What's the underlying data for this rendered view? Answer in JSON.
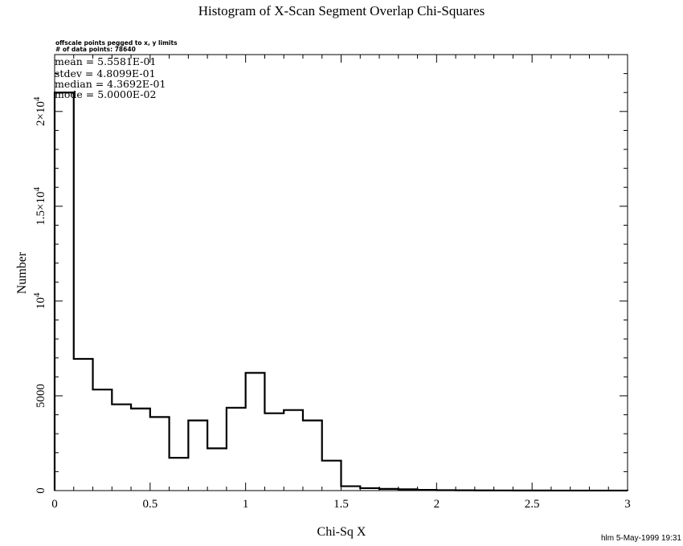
{
  "chart_data": {
    "type": "bar",
    "title": "Histogram of X-Scan Segment Overlap Chi-Squares",
    "xlabel": "Chi-Sq X",
    "ylabel": "Number",
    "xlim": [
      0,
      3
    ],
    "ylim": [
      0,
      23000
    ],
    "x_ticks": [
      "0",
      "0.5",
      "1",
      "1.5",
      "2",
      "2.5",
      "3"
    ],
    "y_ticks": [
      {
        "base": "0",
        "exp": ""
      },
      {
        "base": "5000",
        "exp": ""
      },
      {
        "base": "10",
        "exp": "4"
      },
      {
        "base": "1.5×10",
        "exp": "4"
      },
      {
        "base": "2×10",
        "exp": "4"
      }
    ],
    "bin_width": 0.1,
    "bins": [
      {
        "x0": 0.0,
        "value": 21000
      },
      {
        "x0": 0.1,
        "value": 6950
      },
      {
        "x0": 0.2,
        "value": 5330
      },
      {
        "x0": 0.3,
        "value": 4550
      },
      {
        "x0": 0.4,
        "value": 4330
      },
      {
        "x0": 0.5,
        "value": 3880
      },
      {
        "x0": 0.6,
        "value": 1730
      },
      {
        "x0": 0.7,
        "value": 3700
      },
      {
        "x0": 0.8,
        "value": 2230
      },
      {
        "x0": 0.9,
        "value": 4370
      },
      {
        "x0": 1.0,
        "value": 6210
      },
      {
        "x0": 1.1,
        "value": 4080
      },
      {
        "x0": 1.2,
        "value": 4250
      },
      {
        "x0": 1.3,
        "value": 3700
      },
      {
        "x0": 1.4,
        "value": 1580
      },
      {
        "x0": 1.5,
        "value": 230
      },
      {
        "x0": 1.6,
        "value": 130
      },
      {
        "x0": 1.7,
        "value": 90
      },
      {
        "x0": 1.8,
        "value": 70
      },
      {
        "x0": 1.9,
        "value": 40
      },
      {
        "x0": 2.0,
        "value": 20
      },
      {
        "x0": 2.1,
        "value": 15
      },
      {
        "x0": 2.2,
        "value": 10
      },
      {
        "x0": 2.3,
        "value": 8
      },
      {
        "x0": 2.4,
        "value": 5
      },
      {
        "x0": 2.5,
        "value": 5
      },
      {
        "x0": 2.6,
        "value": 3
      },
      {
        "x0": 2.7,
        "value": 3
      },
      {
        "x0": 2.8,
        "value": 2
      },
      {
        "x0": 2.9,
        "value": 2
      }
    ],
    "grid": false,
    "annotations": {
      "offscale_note": "offscale points pegged to x, y limits",
      "num_points": "# of data points: 78640",
      "stats": [
        "mean =  5.5581E-01",
        "stdev =  4.8099E-01",
        "median =  4.3692E-01",
        "mode =  5.0000E-02"
      ]
    },
    "footer": "hlm  5-May-1999 19:31"
  }
}
